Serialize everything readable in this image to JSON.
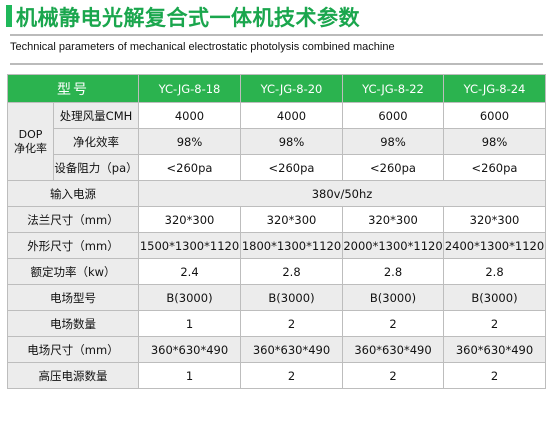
{
  "title": "机械静电光解复合式一体机技术参数",
  "subtitle": "Technical parameters of mechanical electrostatic photolysis combined machine",
  "table": {
    "header": {
      "label": "型号",
      "models": [
        "YC-JG-8-18",
        "YC-JG-8-20",
        "YC-JG-8-22",
        "YC-JG-8-24"
      ]
    },
    "dop_group": {
      "label_line1": "DOP",
      "label_line2": "净化率",
      "rows": [
        {
          "label": "处理风量CMH",
          "values": [
            "4000",
            "4000",
            "6000",
            "6000"
          ]
        },
        {
          "label": "净化效率",
          "values": [
            "98%",
            "98%",
            "98%",
            "98%"
          ]
        },
        {
          "label": "设备阻力（pa）",
          "values": [
            "<260pa",
            "<260pa",
            "<260pa",
            "<260pa"
          ]
        }
      ]
    },
    "input_power": {
      "label": "输入电源",
      "value": "380v/50hz"
    },
    "rows": [
      {
        "label": "法兰尺寸（mm）",
        "values": [
          "320*300",
          "320*300",
          "320*300",
          "320*300"
        ]
      },
      {
        "label": "外形尺寸（mm）",
        "values": [
          "1500*1300*1120",
          "1800*1300*1120",
          "2000*1300*1120",
          "2400*1300*1120"
        ]
      },
      {
        "label": "额定功率（kw）",
        "values": [
          "2.4",
          "2.8",
          "2.8",
          "2.8"
        ]
      },
      {
        "label": "电场型号",
        "values": [
          "B(3000)",
          "B(3000)",
          "B(3000)",
          "B(3000)"
        ]
      },
      {
        "label": "电场数量",
        "values": [
          "1",
          "2",
          "2",
          "2"
        ]
      },
      {
        "label": "电场尺寸（mm）",
        "values": [
          "360*630*490",
          "360*630*490",
          "360*630*490",
          "360*630*490"
        ]
      },
      {
        "label": "高压电源数量",
        "values": [
          "1",
          "2",
          "2",
          "2"
        ]
      }
    ]
  },
  "colors": {
    "accent": "#2bb34f",
    "title": "#1aa64d",
    "label_bg": "#ececec"
  }
}
